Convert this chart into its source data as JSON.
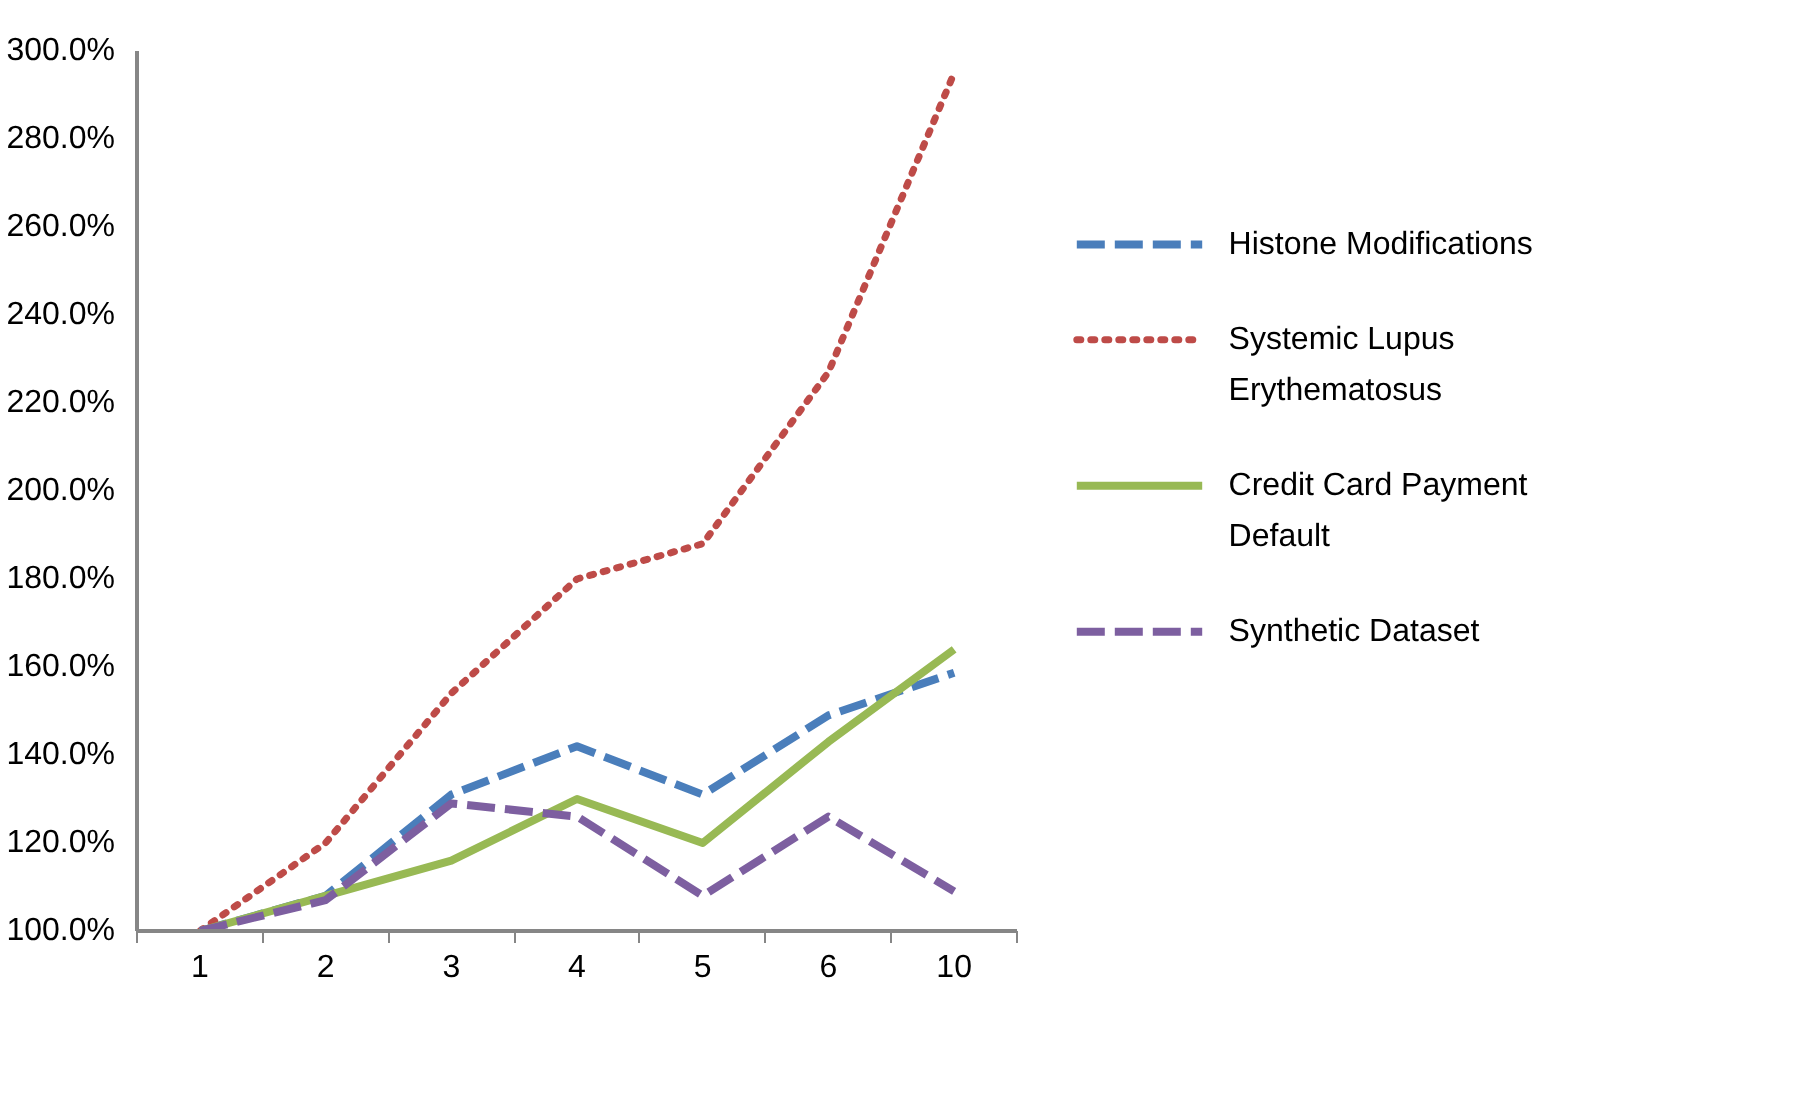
{
  "chart_data": {
    "type": "line",
    "categories": [
      "1",
      "2",
      "3",
      "4",
      "5",
      "6",
      "10"
    ],
    "series": [
      {
        "name": "Histone Modifications",
        "color": "#4a7ebb",
        "line_style": "dashed",
        "values": [
          100,
          108,
          131,
          142,
          131,
          149,
          158.7
        ]
      },
      {
        "name": "Systemic Lupus Erythematosus",
        "color": "#be4b48",
        "line_style": "dotted",
        "values": [
          100,
          120,
          154,
          180,
          188,
          227,
          295
        ]
      },
      {
        "name": "Credit Card Payment Default",
        "color": "#98b954",
        "line_style": "solid",
        "values": [
          100,
          108,
          116,
          130,
          120,
          143,
          164
        ]
      },
      {
        "name": "Synthetic Dataset",
        "color": "#7d5fa0",
        "line_style": "dashed",
        "values": [
          100,
          107,
          129,
          126,
          108,
          126,
          109
        ]
      }
    ],
    "ylim": [
      100,
      300
    ],
    "yticks": [
      {
        "value": 100,
        "label": "100.0%"
      },
      {
        "value": 120,
        "label": "120.0%"
      },
      {
        "value": 140,
        "label": "140.0%"
      },
      {
        "value": 160,
        "label": "160.0%"
      },
      {
        "value": 180,
        "label": "180.0%"
      },
      {
        "value": 200,
        "label": "200.0%"
      },
      {
        "value": 220,
        "label": "220.0%"
      },
      {
        "value": 240,
        "label": "240.0%"
      },
      {
        "value": 260,
        "label": "260.0%"
      },
      {
        "value": 280,
        "label": "280.0%"
      },
      {
        "value": 300,
        "label": "300.0%"
      }
    ],
    "grid": false,
    "legend": "right",
    "marker": "none"
  }
}
